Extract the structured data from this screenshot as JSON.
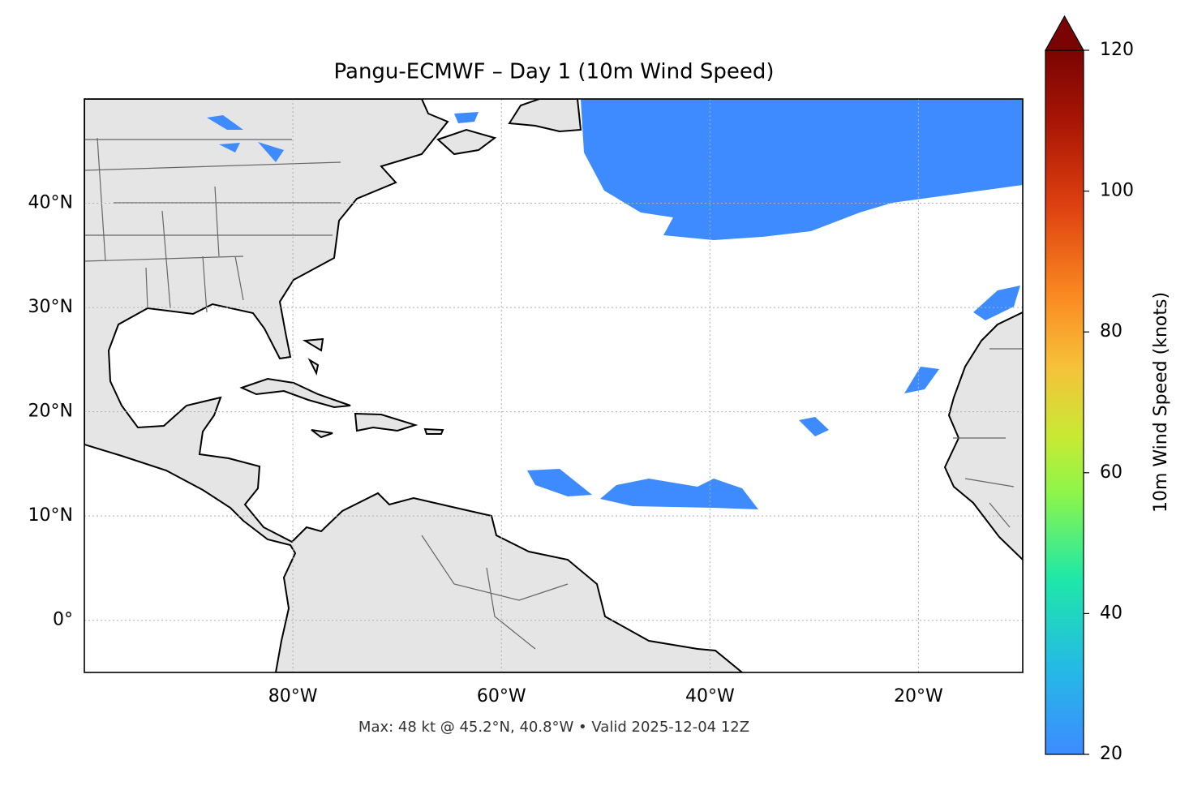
{
  "chart_data": {
    "type": "map",
    "title": "Pangu-ECMWF – Day 1 (10m Wind Speed)",
    "xlim": [
      -100,
      -10
    ],
    "ylim": [
      -5,
      50
    ],
    "xticks": [
      {
        "value": -80,
        "label": "80°W"
      },
      {
        "value": -60,
        "label": "60°W"
      },
      {
        "value": -40,
        "label": "40°W"
      },
      {
        "value": -20,
        "label": "20°W"
      }
    ],
    "yticks": [
      {
        "value": 0,
        "label": "0°"
      },
      {
        "value": 10,
        "label": "10°N"
      },
      {
        "value": 20,
        "label": "20°N"
      },
      {
        "value": 30,
        "label": "30°N"
      },
      {
        "value": 40,
        "label": "40°N"
      }
    ],
    "grid": true,
    "colorbar": {
      "label": "10m Wind Speed (knots)",
      "lim": [
        20,
        120
      ],
      "ticks": [
        20,
        40,
        60,
        80,
        100,
        120
      ],
      "extend": "max"
    },
    "note": "Max: 48 kt @ 45.2°N, 40.8°W • Valid 2025-12-04 12Z"
  }
}
